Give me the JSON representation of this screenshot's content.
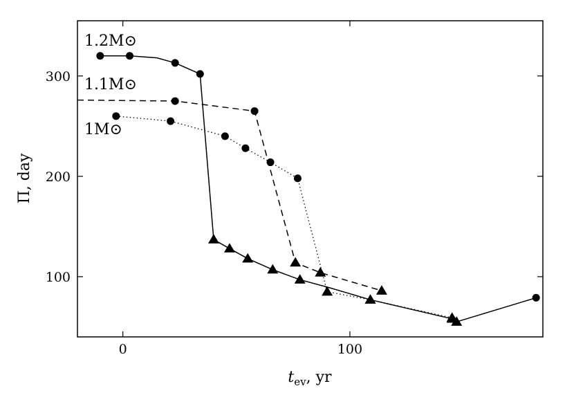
{
  "chart_data": {
    "type": "line",
    "xlabel_main": "t",
    "xlabel_sub": "ev",
    "xlabel_unit": ", yr",
    "ylabel": "Π, day",
    "xlim": [
      -20,
      185
    ],
    "ylim": [
      40,
      355
    ],
    "xticks": [
      0,
      100
    ],
    "yticks": [
      100,
      200,
      300
    ],
    "grid": false,
    "series": [
      {
        "annotation": "1.2M⊙",
        "line_style": "solid",
        "x": [
          -10,
          3,
          15,
          23,
          34,
          40,
          47,
          55,
          66,
          78,
          91,
          109,
          145,
          147,
          182
        ],
        "y": [
          320,
          320,
          318,
          313,
          302,
          137,
          128,
          118,
          107,
          97,
          89,
          77,
          58,
          55,
          79
        ],
        "markers": [
          "circle",
          "circle",
          "none",
          "circle",
          "circle",
          "triangle",
          "triangle",
          "triangle",
          "triangle",
          "triangle",
          "none",
          "triangle",
          "triangle",
          "triangle",
          "circle"
        ]
      },
      {
        "annotation": "1.1M⊙",
        "line_style": "dashed",
        "x": [
          -20,
          23,
          58,
          76,
          87,
          114
        ],
        "y": [
          276,
          275,
          265,
          114,
          104,
          86
        ],
        "markers": [
          "none",
          "circle",
          "circle",
          "triangle",
          "triangle",
          "triangle"
        ]
      },
      {
        "annotation": "1M⊙",
        "line_style": "dotted",
        "x": [
          -3,
          21,
          45,
          54,
          65,
          77,
          90,
          109,
          145
        ],
        "y": [
          260,
          255,
          240,
          228,
          214,
          198,
          85,
          77,
          59
        ],
        "markers": [
          "circle",
          "circle",
          "circle",
          "circle",
          "circle",
          "circle",
          "triangle",
          "triangle",
          "triangle"
        ]
      }
    ]
  }
}
